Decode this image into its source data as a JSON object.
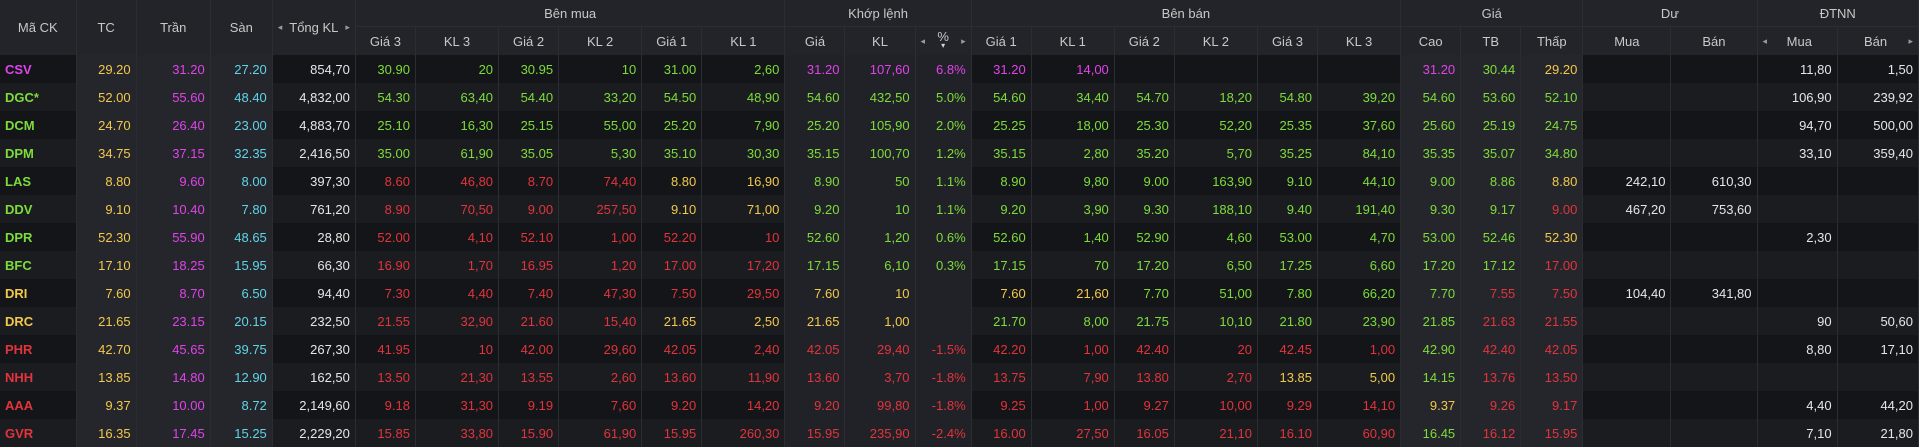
{
  "colors": {
    "ceil": "#e043ea",
    "floor": "#5fd5e8",
    "ref": "#f2c94c",
    "up": "#7ddc3a",
    "down": "#e2343c",
    "vol": "#e6e6e6"
  },
  "header": {
    "symbol": "Mã CK",
    "ref": "TC",
    "ceil": "Trần",
    "floor": "Sàn",
    "total_vol": "Tổng KL",
    "buy_group": "Bên mua",
    "match_group": "Khớp lệnh",
    "sell_group": "Bên bán",
    "price_group": "Giá",
    "remain_group": "Dư",
    "foreign_group": "ĐTNN",
    "price3": "Giá 3",
    "vol3": "KL 3",
    "price2": "Giá 2",
    "vol2": "KL 2",
    "price1": "Giá 1",
    "vol1": "KL 1",
    "match_price": "Giá",
    "match_vol": "KL",
    "pct": "%",
    "high": "Cao",
    "avg": "TB",
    "low": "Thấp",
    "buy": "Mua",
    "sell": "Bán",
    "left_arrow": "◂",
    "right_arrow": "▸",
    "sort_down": "▾"
  },
  "rows": [
    {
      "sym": [
        "CSV",
        "ceil"
      ],
      "tc": "29.20",
      "tran": "31.20",
      "san": "27.20",
      "tong": "854,70",
      "b3": [
        "30.90",
        "up"
      ],
      "bk3": [
        "20",
        "up"
      ],
      "b2": [
        "30.95",
        "up"
      ],
      "bk2": [
        "10",
        "up"
      ],
      "b1": [
        "31.00",
        "up"
      ],
      "bk1": [
        "2,60",
        "up"
      ],
      "mp": [
        "31.20",
        "ceil"
      ],
      "mk": [
        "107,60",
        "ceil"
      ],
      "pct": [
        "6.8%",
        "ceil"
      ],
      "s1": [
        "31.20",
        "ceil"
      ],
      "sk1": [
        "14,00",
        "ceil"
      ],
      "s2": [
        "",
        ""
      ],
      "sk2": [
        "",
        ""
      ],
      "s3": [
        "",
        ""
      ],
      "sk3": [
        "",
        ""
      ],
      "hi": [
        "31.20",
        "ceil"
      ],
      "avg": [
        "30.44",
        "up"
      ],
      "lo": [
        "29.20",
        "ref"
      ],
      "dm": "",
      "db": "",
      "fm": "11,80",
      "fb": "1,50"
    },
    {
      "sym": [
        "DGC*",
        "up"
      ],
      "tc": "52.00",
      "tran": "55.60",
      "san": "48.40",
      "tong": "4,832,00",
      "b3": [
        "54.30",
        "up"
      ],
      "bk3": [
        "63,40",
        "up"
      ],
      "b2": [
        "54.40",
        "up"
      ],
      "bk2": [
        "33,20",
        "up"
      ],
      "b1": [
        "54.50",
        "up"
      ],
      "bk1": [
        "48,90",
        "up"
      ],
      "mp": [
        "54.60",
        "up"
      ],
      "mk": [
        "432,50",
        "up"
      ],
      "pct": [
        "5.0%",
        "up"
      ],
      "s1": [
        "54.60",
        "up"
      ],
      "sk1": [
        "34,40",
        "up"
      ],
      "s2": [
        "54.70",
        "up"
      ],
      "sk2": [
        "18,20",
        "up"
      ],
      "s3": [
        "54.80",
        "up"
      ],
      "sk3": [
        "39,20",
        "up"
      ],
      "hi": [
        "54.60",
        "up"
      ],
      "avg": [
        "53.60",
        "up"
      ],
      "lo": [
        "52.10",
        "up"
      ],
      "dm": "",
      "db": "",
      "fm": "106,90",
      "fb": "239,92"
    },
    {
      "sym": [
        "DCM",
        "up"
      ],
      "tc": "24.70",
      "tran": "26.40",
      "san": "23.00",
      "tong": "4,883,70",
      "b3": [
        "25.10",
        "up"
      ],
      "bk3": [
        "16,30",
        "up"
      ],
      "b2": [
        "25.15",
        "up"
      ],
      "bk2": [
        "55,00",
        "up"
      ],
      "b1": [
        "25.20",
        "up"
      ],
      "bk1": [
        "7,90",
        "up"
      ],
      "mp": [
        "25.20",
        "up"
      ],
      "mk": [
        "105,90",
        "up"
      ],
      "pct": [
        "2.0%",
        "up"
      ],
      "s1": [
        "25.25",
        "up"
      ],
      "sk1": [
        "18,00",
        "up"
      ],
      "s2": [
        "25.30",
        "up"
      ],
      "sk2": [
        "52,20",
        "up"
      ],
      "s3": [
        "25.35",
        "up"
      ],
      "sk3": [
        "37,60",
        "up"
      ],
      "hi": [
        "25.60",
        "up"
      ],
      "avg": [
        "25.19",
        "up"
      ],
      "lo": [
        "24.75",
        "up"
      ],
      "dm": "",
      "db": "",
      "fm": "94,70",
      "fb": "500,00"
    },
    {
      "sym": [
        "DPM",
        "up"
      ],
      "tc": "34.75",
      "tran": "37.15",
      "san": "32.35",
      "tong": "2,416,50",
      "b3": [
        "35.00",
        "up"
      ],
      "bk3": [
        "61,90",
        "up"
      ],
      "b2": [
        "35.05",
        "up"
      ],
      "bk2": [
        "5,30",
        "up"
      ],
      "b1": [
        "35.10",
        "up"
      ],
      "bk1": [
        "30,30",
        "up"
      ],
      "mp": [
        "35.15",
        "up"
      ],
      "mk": [
        "100,70",
        "up"
      ],
      "pct": [
        "1.2%",
        "up"
      ],
      "s1": [
        "35.15",
        "up"
      ],
      "sk1": [
        "2,80",
        "up"
      ],
      "s2": [
        "35.20",
        "up"
      ],
      "sk2": [
        "5,70",
        "up"
      ],
      "s3": [
        "35.25",
        "up"
      ],
      "sk3": [
        "84,10",
        "up"
      ],
      "hi": [
        "35.35",
        "up"
      ],
      "avg": [
        "35.07",
        "up"
      ],
      "lo": [
        "34.80",
        "up"
      ],
      "dm": "",
      "db": "",
      "fm": "33,10",
      "fb": "359,40"
    },
    {
      "sym": [
        "LAS",
        "up"
      ],
      "tc": "8.80",
      "tran": "9.60",
      "san": "8.00",
      "tong": "397,30",
      "b3": [
        "8.60",
        "down"
      ],
      "bk3": [
        "46,80",
        "down"
      ],
      "b2": [
        "8.70",
        "down"
      ],
      "bk2": [
        "74,40",
        "down"
      ],
      "b1": [
        "8.80",
        "ref"
      ],
      "bk1": [
        "16,90",
        "ref"
      ],
      "mp": [
        "8.90",
        "up"
      ],
      "mk": [
        "50",
        "up"
      ],
      "pct": [
        "1.1%",
        "up"
      ],
      "s1": [
        "8.90",
        "up"
      ],
      "sk1": [
        "9,80",
        "up"
      ],
      "s2": [
        "9.00",
        "up"
      ],
      "sk2": [
        "163,90",
        "up"
      ],
      "s3": [
        "9.10",
        "up"
      ],
      "sk3": [
        "44,10",
        "up"
      ],
      "hi": [
        "9.00",
        "up"
      ],
      "avg": [
        "8.86",
        "up"
      ],
      "lo": [
        "8.80",
        "ref"
      ],
      "dm": "242,10",
      "db": "610,30",
      "fm": "",
      "fb": ""
    },
    {
      "sym": [
        "DDV",
        "up"
      ],
      "tc": "9.10",
      "tran": "10.40",
      "san": "7.80",
      "tong": "761,20",
      "b3": [
        "8.90",
        "down"
      ],
      "bk3": [
        "70,50",
        "down"
      ],
      "b2": [
        "9.00",
        "down"
      ],
      "bk2": [
        "257,50",
        "down"
      ],
      "b1": [
        "9.10",
        "ref"
      ],
      "bk1": [
        "71,00",
        "ref"
      ],
      "mp": [
        "9.20",
        "up"
      ],
      "mk": [
        "10",
        "up"
      ],
      "pct": [
        "1.1%",
        "up"
      ],
      "s1": [
        "9.20",
        "up"
      ],
      "sk1": [
        "3,90",
        "up"
      ],
      "s2": [
        "9.30",
        "up"
      ],
      "sk2": [
        "188,10",
        "up"
      ],
      "s3": [
        "9.40",
        "up"
      ],
      "sk3": [
        "191,40",
        "up"
      ],
      "hi": [
        "9.30",
        "up"
      ],
      "avg": [
        "9.17",
        "up"
      ],
      "lo": [
        "9.00",
        "down"
      ],
      "dm": "467,20",
      "db": "753,60",
      "fm": "",
      "fb": ""
    },
    {
      "sym": [
        "DPR",
        "up"
      ],
      "tc": "52.30",
      "tran": "55.90",
      "san": "48.65",
      "tong": "28,80",
      "b3": [
        "52.00",
        "down"
      ],
      "bk3": [
        "4,10",
        "down"
      ],
      "b2": [
        "52.10",
        "down"
      ],
      "bk2": [
        "1,00",
        "down"
      ],
      "b1": [
        "52.20",
        "down"
      ],
      "bk1": [
        "10",
        "down"
      ],
      "mp": [
        "52.60",
        "up"
      ],
      "mk": [
        "1,20",
        "up"
      ],
      "pct": [
        "0.6%",
        "up"
      ],
      "s1": [
        "52.60",
        "up"
      ],
      "sk1": [
        "1,40",
        "up"
      ],
      "s2": [
        "52.90",
        "up"
      ],
      "sk2": [
        "4,60",
        "up"
      ],
      "s3": [
        "53.00",
        "up"
      ],
      "sk3": [
        "4,70",
        "up"
      ],
      "hi": [
        "53.00",
        "up"
      ],
      "avg": [
        "52.46",
        "up"
      ],
      "lo": [
        "52.30",
        "ref"
      ],
      "dm": "",
      "db": "",
      "fm": "2,30",
      "fb": ""
    },
    {
      "sym": [
        "BFC",
        "up"
      ],
      "tc": "17.10",
      "tran": "18.25",
      "san": "15.95",
      "tong": "66,30",
      "b3": [
        "16.90",
        "down"
      ],
      "bk3": [
        "1,70",
        "down"
      ],
      "b2": [
        "16.95",
        "down"
      ],
      "bk2": [
        "1,20",
        "down"
      ],
      "b1": [
        "17.00",
        "down"
      ],
      "bk1": [
        "17,20",
        "down"
      ],
      "mp": [
        "17.15",
        "up"
      ],
      "mk": [
        "6,10",
        "up"
      ],
      "pct": [
        "0.3%",
        "up"
      ],
      "s1": [
        "17.15",
        "up"
      ],
      "sk1": [
        "70",
        "up"
      ],
      "s2": [
        "17.20",
        "up"
      ],
      "sk2": [
        "6,50",
        "up"
      ],
      "s3": [
        "17.25",
        "up"
      ],
      "sk3": [
        "6,60",
        "up"
      ],
      "hi": [
        "17.20",
        "up"
      ],
      "avg": [
        "17.12",
        "up"
      ],
      "lo": [
        "17.00",
        "down"
      ],
      "dm": "",
      "db": "",
      "fm": "",
      "fb": ""
    },
    {
      "sym": [
        "DRI",
        "ref"
      ],
      "tc": "7.60",
      "tran": "8.70",
      "san": "6.50",
      "tong": "94,40",
      "b3": [
        "7.30",
        "down"
      ],
      "bk3": [
        "4,40",
        "down"
      ],
      "b2": [
        "7.40",
        "down"
      ],
      "bk2": [
        "47,30",
        "down"
      ],
      "b1": [
        "7.50",
        "down"
      ],
      "bk1": [
        "29,50",
        "down"
      ],
      "mp": [
        "7.60",
        "ref"
      ],
      "mk": [
        "10",
        "ref"
      ],
      "pct": [
        "",
        ""
      ],
      "s1": [
        "7.60",
        "ref"
      ],
      "sk1": [
        "21,60",
        "ref"
      ],
      "s2": [
        "7.70",
        "up"
      ],
      "sk2": [
        "51,00",
        "up"
      ],
      "s3": [
        "7.80",
        "up"
      ],
      "sk3": [
        "66,20",
        "up"
      ],
      "hi": [
        "7.70",
        "up"
      ],
      "avg": [
        "7.55",
        "down"
      ],
      "lo": [
        "7.50",
        "down"
      ],
      "dm": "104,40",
      "db": "341,80",
      "fm": "",
      "fb": ""
    },
    {
      "sym": [
        "DRC",
        "ref"
      ],
      "tc": "21.65",
      "tran": "23.15",
      "san": "20.15",
      "tong": "232,50",
      "b3": [
        "21.55",
        "down"
      ],
      "bk3": [
        "32,90",
        "down"
      ],
      "b2": [
        "21.60",
        "down"
      ],
      "bk2": [
        "15,40",
        "down"
      ],
      "b1": [
        "21.65",
        "ref"
      ],
      "bk1": [
        "2,50",
        "ref"
      ],
      "mp": [
        "21.65",
        "ref"
      ],
      "mk": [
        "1,00",
        "ref"
      ],
      "pct": [
        "",
        ""
      ],
      "s1": [
        "21.70",
        "up"
      ],
      "sk1": [
        "8,00",
        "up"
      ],
      "s2": [
        "21.75",
        "up"
      ],
      "sk2": [
        "10,10",
        "up"
      ],
      "s3": [
        "21.80",
        "up"
      ],
      "sk3": [
        "23,90",
        "up"
      ],
      "hi": [
        "21.85",
        "up"
      ],
      "avg": [
        "21.63",
        "down"
      ],
      "lo": [
        "21.55",
        "down"
      ],
      "dm": "",
      "db": "",
      "fm": "90",
      "fb": "50,60"
    },
    {
      "sym": [
        "PHR",
        "down"
      ],
      "tc": "42.70",
      "tran": "45.65",
      "san": "39.75",
      "tong": "267,30",
      "b3": [
        "41.95",
        "down"
      ],
      "bk3": [
        "10",
        "down"
      ],
      "b2": [
        "42.00",
        "down"
      ],
      "bk2": [
        "29,60",
        "down"
      ],
      "b1": [
        "42.05",
        "down"
      ],
      "bk1": [
        "2,40",
        "down"
      ],
      "mp": [
        "42.05",
        "down"
      ],
      "mk": [
        "29,40",
        "down"
      ],
      "pct": [
        "-1.5%",
        "down"
      ],
      "s1": [
        "42.20",
        "down"
      ],
      "sk1": [
        "1,00",
        "down"
      ],
      "s2": [
        "42.40",
        "down"
      ],
      "sk2": [
        "20",
        "down"
      ],
      "s3": [
        "42.45",
        "down"
      ],
      "sk3": [
        "1,00",
        "down"
      ],
      "hi": [
        "42.90",
        "up"
      ],
      "avg": [
        "42.40",
        "down"
      ],
      "lo": [
        "42.05",
        "down"
      ],
      "dm": "",
      "db": "",
      "fm": "8,80",
      "fb": "17,10"
    },
    {
      "sym": [
        "NHH",
        "down"
      ],
      "tc": "13.85",
      "tran": "14.80",
      "san": "12.90",
      "tong": "162,50",
      "b3": [
        "13.50",
        "down"
      ],
      "bk3": [
        "21,30",
        "down"
      ],
      "b2": [
        "13.55",
        "down"
      ],
      "bk2": [
        "2,60",
        "down"
      ],
      "b1": [
        "13.60",
        "down"
      ],
      "bk1": [
        "11,90",
        "down"
      ],
      "mp": [
        "13.60",
        "down"
      ],
      "mk": [
        "3,70",
        "down"
      ],
      "pct": [
        "-1.8%",
        "down"
      ],
      "s1": [
        "13.75",
        "down"
      ],
      "sk1": [
        "7,90",
        "down"
      ],
      "s2": [
        "13.80",
        "down"
      ],
      "sk2": [
        "2,70",
        "down"
      ],
      "s3": [
        "13.85",
        "ref"
      ],
      "sk3": [
        "5,00",
        "ref"
      ],
      "hi": [
        "14.15",
        "up"
      ],
      "avg": [
        "13.76",
        "down"
      ],
      "lo": [
        "13.50",
        "down"
      ],
      "dm": "",
      "db": "",
      "fm": "",
      "fb": ""
    },
    {
      "sym": [
        "AAA",
        "down"
      ],
      "tc": "9.37",
      "tran": "10.00",
      "san": "8.72",
      "tong": "2,149,60",
      "b3": [
        "9.18",
        "down"
      ],
      "bk3": [
        "31,30",
        "down"
      ],
      "b2": [
        "9.19",
        "down"
      ],
      "bk2": [
        "7,60",
        "down"
      ],
      "b1": [
        "9.20",
        "down"
      ],
      "bk1": [
        "14,20",
        "down"
      ],
      "mp": [
        "9.20",
        "down"
      ],
      "mk": [
        "99,80",
        "down"
      ],
      "pct": [
        "-1.8%",
        "down"
      ],
      "s1": [
        "9.25",
        "down"
      ],
      "sk1": [
        "1,00",
        "down"
      ],
      "s2": [
        "9.27",
        "down"
      ],
      "sk2": [
        "10,00",
        "down"
      ],
      "s3": [
        "9.29",
        "down"
      ],
      "sk3": [
        "14,10",
        "down"
      ],
      "hi": [
        "9.37",
        "ref"
      ],
      "avg": [
        "9.26",
        "down"
      ],
      "lo": [
        "9.17",
        "down"
      ],
      "dm": "",
      "db": "",
      "fm": "4,40",
      "fb": "44,20"
    },
    {
      "sym": [
        "GVR",
        "down"
      ],
      "tc": "16.35",
      "tran": "17.45",
      "san": "15.25",
      "tong": "2,229,20",
      "b3": [
        "15.85",
        "down"
      ],
      "bk3": [
        "33,80",
        "down"
      ],
      "b2": [
        "15.90",
        "down"
      ],
      "bk2": [
        "61,90",
        "down"
      ],
      "b1": [
        "15.95",
        "down"
      ],
      "bk1": [
        "260,30",
        "down"
      ],
      "mp": [
        "15.95",
        "down"
      ],
      "mk": [
        "235,90",
        "down"
      ],
      "pct": [
        "-2.4%",
        "down"
      ],
      "s1": [
        "16.00",
        "down"
      ],
      "sk1": [
        "27,50",
        "down"
      ],
      "s2": [
        "16.05",
        "down"
      ],
      "sk2": [
        "21,10",
        "down"
      ],
      "s3": [
        "16.10",
        "down"
      ],
      "sk3": [
        "60,90",
        "down"
      ],
      "hi": [
        "16.45",
        "up"
      ],
      "avg": [
        "16.12",
        "down"
      ],
      "lo": [
        "15.95",
        "down"
      ],
      "dm": "",
      "db": "",
      "fm": "7,10",
      "fb": "21,80"
    }
  ]
}
